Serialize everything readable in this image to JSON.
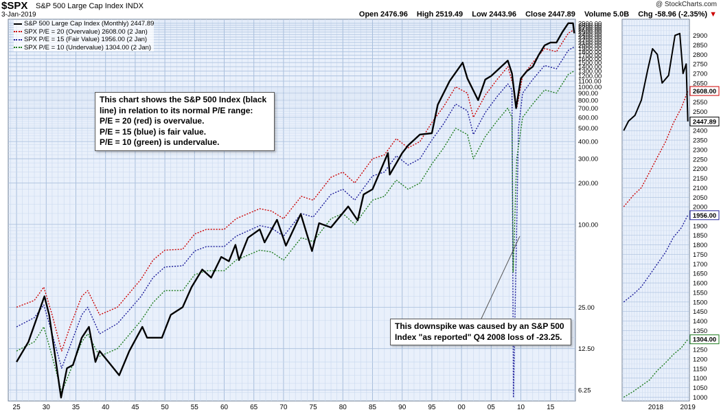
{
  "header": {
    "symbol": "$SPX",
    "name": "S&P 500 Large Cap Index",
    "exchange": "INDX",
    "date": "3-Jan-2019",
    "credit": "@ StockCharts.com",
    "open": "Open 2476.96",
    "high": "High 2519.49",
    "low": "Low 2443.96",
    "close": "Close 2447.89",
    "volume": "Volume 5.0B",
    "chg": "Chg -58.96 (-2.35%)",
    "chg_arrow": "▼"
  },
  "legend": [
    {
      "label": "S&P 500 Large Cap Index (Monthly) 2447.89",
      "color": "#000000",
      "style": "solid"
    },
    {
      "label": "SPX P/E = 20 (Overvalue) 2608.00 (2 Jan)",
      "color": "#cc0000",
      "style": "dotted"
    },
    {
      "label": "SPX P/E = 15 (Fair Value) 1956.00 (2 Jan)",
      "color": "#1a1a99",
      "style": "dotted"
    },
    {
      "label": "SPX P/E = 10 (Undervalue) 1304.00 (2 Jan)",
      "color": "#1a7a1a",
      "style": "dotted"
    }
  ],
  "annotations": {
    "info_box": [
      "This chart shows the S&P 500 Index (black",
      "line) in relation to its normal P/E range:",
      "P/E = 20 (red) is overvalue.",
      "P/E = 15 (blue) is fair value.",
      "P/E = 10 (green) is undervalue."
    ],
    "spike_box": [
      "This downspike was caused by an S&P 500",
      "Index \"as reported\" Q4 2008 loss of -23.25."
    ]
  },
  "chart_data": [
    {
      "type": "line",
      "title": "S&P 500 Large Cap Index (Monthly)",
      "yscale": "log",
      "ylim": [
        5.2,
        3100
      ],
      "x_ticks": [
        "25",
        "30",
        "35",
        "40",
        "45",
        "50",
        "55",
        "60",
        "65",
        "70",
        "75",
        "80",
        "85",
        "90",
        "95",
        "00",
        "05",
        "10",
        "15"
      ],
      "x_tick_years": [
        1925,
        1930,
        1935,
        1940,
        1945,
        1950,
        1955,
        1960,
        1965,
        1970,
        1975,
        1980,
        1985,
        1990,
        1995,
        2000,
        2005,
        2010,
        2015
      ],
      "y_ticks": [
        6.25,
        12.5,
        25,
        100,
        200,
        300,
        400,
        500,
        600,
        700,
        800,
        900,
        1000,
        1100,
        1200,
        1300,
        1400,
        1500,
        1600,
        1700,
        1800,
        1900,
        2000,
        2100,
        2200,
        2300,
        2400,
        2500,
        2600,
        2700,
        2800,
        2900
      ],
      "y_tick_labels": [
        "6.25",
        "12.50",
        "25.00",
        "100.00",
        "200.00",
        "300.00",
        "400.00",
        "500.00",
        "600.00",
        "700.00",
        "800.00",
        "900.00",
        "1000.00",
        "1100.00",
        "1200.00",
        "1300.00",
        "1400.00",
        "1500.00",
        "1600.00",
        "1700.00",
        "1800.00",
        "1900.00",
        "2000.00",
        "2100.00",
        "2200.00",
        "2300.00",
        "2400.00",
        "2500.00",
        "2600.00",
        "2700.00",
        "2800.00",
        "2900.00"
      ],
      "series": [
        {
          "name": "S&P 500 Large Cap Index (Monthly)",
          "color": "#000000",
          "x": [
            1925,
            1927,
            1929.7,
            1930.5,
            1931.5,
            1932.5,
            1933.5,
            1934.5,
            1936,
            1937.2,
            1938.3,
            1939,
            1940.5,
            1942.3,
            1944,
            1946.2,
            1947,
            1949.5,
            1951,
            1953,
            1954.5,
            1956.3,
            1957.8,
            1959.5,
            1960.8,
            1961.9,
            1962.5,
            1964,
            1966,
            1966.8,
            1968.9,
            1970.4,
            1972.9,
            1974.8,
            1976,
            1978,
            1980.9,
            1982.5,
            1983.5,
            1985,
            1987.6,
            1987.9,
            1990,
            1991,
            1993,
            1995,
            1996,
            1998,
            2000.2,
            2001,
            2002.8,
            2004,
            2005,
            2007.8,
            2008.5,
            2009.2,
            2010,
            2011,
            2012,
            2013,
            2014,
            2015,
            2016,
            2017,
            2018,
            2018.8,
            2019
          ],
          "y": [
            10,
            14,
            30,
            22,
            11,
            5.5,
            9,
            9.5,
            15,
            18,
            10,
            12,
            10,
            8,
            12,
            18,
            15,
            15,
            22,
            25,
            35,
            47,
            41,
            58,
            54,
            71,
            55,
            80,
            92,
            74,
            108,
            70,
            119,
            64,
            102,
            95,
            135,
            107,
            165,
            180,
            330,
            230,
            330,
            375,
            450,
            460,
            740,
            1100,
            1500,
            1150,
            800,
            1130,
            1200,
            1550,
            1250,
            700,
            1150,
            1300,
            1400,
            1700,
            2000,
            2100,
            2100,
            2500,
            2900,
            2900,
            2448
          ]
        },
        {
          "name": "SPX P/E = 20 (Overvalue)",
          "color": "#cc0000",
          "x": [
            1925,
            1928,
            1929.6,
            1931,
            1932.6,
            1934,
            1936,
            1937,
            1939,
            1942,
            1946,
            1948,
            1950,
            1953,
            1955,
            1957,
            1960,
            1962,
            1966,
            1968,
            1970,
            1973,
            1975,
            1978,
            1980,
            1982,
            1985,
            1987,
            1989,
            1991,
            1993,
            1995,
            1997,
            1999,
            2001,
            2002,
            2004,
            2006,
            2007.8,
            2008.8,
            2009.3,
            2010.3,
            2012,
            2014,
            2016,
            2018,
            2019
          ],
          "y": [
            25,
            28,
            35,
            22,
            12,
            18,
            30,
            33,
            22,
            25,
            40,
            55,
            65,
            66,
            85,
            92,
            92,
            110,
            130,
            125,
            110,
            160,
            150,
            220,
            240,
            200,
            300,
            320,
            420,
            360,
            400,
            550,
            720,
            1000,
            900,
            600,
            870,
            1130,
            1400,
            1000,
            700,
            1200,
            1500,
            1900,
            1800,
            2450,
            2608
          ]
        },
        {
          "name": "SPX P/E = 15 (Fair Value)",
          "color": "#1a1a99",
          "x": [
            1925,
            1928,
            1929.6,
            1931,
            1932.6,
            1934,
            1936,
            1937,
            1939,
            1942,
            1946,
            1948,
            1950,
            1953,
            1955,
            1957,
            1960,
            1962,
            1966,
            1968,
            1970,
            1973,
            1975,
            1978,
            1980,
            1982,
            1985,
            1987,
            1989,
            1991,
            1993,
            1995,
            1997,
            1999,
            2001,
            2002,
            2004,
            2006,
            2007.8,
            2008.5,
            2008.75,
            2009.25,
            2009.6,
            2010.3,
            2012,
            2014,
            2016,
            2018,
            2019
          ],
          "y": [
            18,
            21,
            26,
            16,
            9,
            13,
            22,
            25,
            16,
            19,
            30,
            41,
            49,
            50,
            64,
            69,
            69,
            82,
            98,
            94,
            82,
            120,
            113,
            165,
            180,
            150,
            225,
            240,
            315,
            270,
            300,
            410,
            540,
            750,
            670,
            450,
            650,
            850,
            1050,
            950,
            5.5,
            70,
            500,
            900,
            1130,
            1430,
            1350,
            1840,
            1956
          ]
        },
        {
          "name": "SPX P/E = 10 (Undervalue)",
          "color": "#1a7a1a",
          "x": [
            1925,
            1928,
            1929.6,
            1931,
            1932.6,
            1934,
            1936,
            1937,
            1939,
            1942,
            1946,
            1948,
            1950,
            1953,
            1955,
            1957,
            1960,
            1962,
            1966,
            1968,
            1970,
            1973,
            1975,
            1978,
            1980,
            1982,
            1985,
            1987,
            1989,
            1991,
            1993,
            1995,
            1997,
            1999,
            2001,
            2002,
            2004,
            2006,
            2007.8,
            2008.5,
            2008.7,
            2009.3,
            2010.3,
            2012,
            2014,
            2016,
            2018,
            2019
          ],
          "y": [
            12,
            14,
            18,
            11,
            6,
            8.5,
            14,
            16,
            11,
            12.5,
            20,
            27,
            33,
            33,
            43,
            46,
            46,
            55,
            65,
            63,
            55,
            80,
            75,
            110,
            120,
            100,
            150,
            160,
            210,
            180,
            200,
            275,
            360,
            500,
            450,
            300,
            435,
            565,
            700,
            600,
            45,
            300,
            600,
            750,
            950,
            900,
            1230,
            1304
          ]
        }
      ]
    },
    {
      "type": "line",
      "title": "",
      "x_ticks": [
        "2018",
        "2019"
      ],
      "y_ticks": [
        1000,
        1050,
        1100,
        1150,
        1200,
        1250,
        1300,
        1350,
        1400,
        1450,
        1500,
        1550,
        1600,
        1650,
        1700,
        1750,
        1800,
        1850,
        1900,
        1950,
        2000,
        2050,
        2100,
        2150,
        2200,
        2250,
        2300,
        2350,
        2400,
        2450,
        2500,
        2550,
        2600,
        2650,
        2700,
        2750,
        2800,
        2850,
        2900
      ],
      "ylim": [
        980,
        2985
      ],
      "last_value_labels": [
        "2608.00",
        "2447.89",
        "1956.00",
        "1304.00"
      ],
      "series": [
        {
          "name": "S&P 500",
          "color": "#000000",
          "x": [
            2017.0,
            2017.15,
            2017.35,
            2017.55,
            2017.75,
            2017.9,
            2018.05,
            2018.2,
            2018.4,
            2018.6,
            2018.75,
            2018.85,
            2018.95,
            2019.0
          ],
          "y": [
            2400,
            2450,
            2480,
            2560,
            2720,
            2830,
            2800,
            2650,
            2690,
            2900,
            2910,
            2700,
            2750,
            2447.89
          ]
        },
        {
          "name": "P/E 20",
          "color": "#cc0000",
          "x": [
            2017.0,
            2017.3,
            2017.55,
            2017.8,
            2018.05,
            2018.3,
            2018.55,
            2018.8,
            2019.0
          ],
          "y": [
            2000,
            2060,
            2100,
            2180,
            2260,
            2340,
            2440,
            2520,
            2608
          ]
        },
        {
          "name": "P/E 15",
          "color": "#1a1a99",
          "x": [
            2017.0,
            2017.3,
            2017.55,
            2017.8,
            2018.05,
            2018.3,
            2018.55,
            2018.8,
            2019.0
          ],
          "y": [
            1500,
            1540,
            1580,
            1640,
            1700,
            1760,
            1840,
            1890,
            1956
          ]
        },
        {
          "name": "P/E 10",
          "color": "#1a7a1a",
          "x": [
            2017.0,
            2017.3,
            2017.55,
            2017.8,
            2018.05,
            2018.3,
            2018.55,
            2018.8,
            2019.0
          ],
          "y": [
            1000,
            1030,
            1060,
            1090,
            1140,
            1180,
            1225,
            1260,
            1304
          ]
        }
      ]
    }
  ]
}
